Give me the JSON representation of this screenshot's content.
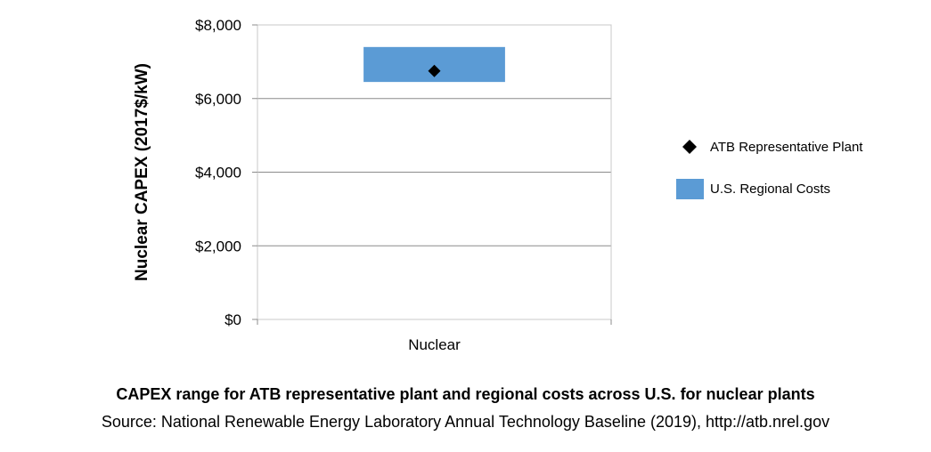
{
  "chart_data": {
    "type": "bar",
    "title": "",
    "xlabel": "",
    "ylabel": "Nuclear CAPEX (2017$/kW)",
    "categories": [
      "Nuclear"
    ],
    "ylim": [
      0,
      8000
    ],
    "yticks": [
      0,
      2000,
      4000,
      6000,
      8000
    ],
    "ytick_labels": [
      "$0",
      "$2,000",
      "$4,000",
      "$6,000",
      "$8,000"
    ],
    "grid": true,
    "legend_position": "right",
    "series": [
      {
        "name": "U.S. Regional Costs",
        "kind": "range",
        "low": [
          6450
        ],
        "high": [
          7400
        ],
        "color": "#5b9bd5"
      },
      {
        "name": "ATB Representative Plant",
        "kind": "marker",
        "marker": "diamond",
        "values": [
          6750
        ],
        "color": "#000000"
      }
    ]
  },
  "caption": {
    "title": "CAPEX range for ATB representative plant and regional costs across U.S. for nuclear plants",
    "source": "Source: National Renewable Energy Laboratory Annual Technology Baseline (2019), http://atb.nrel.gov"
  }
}
